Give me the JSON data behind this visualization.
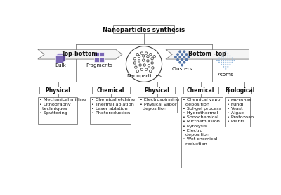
{
  "title": "Nanoparticles synthesis",
  "top_bottom_label": "Top-bottom",
  "bottom_top_label": "Bottom -top",
  "center_label": "Nanoparticles",
  "bg_color": "#ffffff",
  "box_edge": "#777777",
  "banner_fill": "#f5f5f5",
  "banner_edge": "#777777",
  "purple_color": "#7B68B5",
  "purple_light": "#9B8BD0",
  "purple_dark": "#5B4895",
  "blue_dot_color": "#5577AA",
  "atom_dot_color": "#99BBDD",
  "line_color": "#777777",
  "physical_tb_items": [
    "• Mechanical milling",
    "• Lithography\n  techniques",
    "• Sputtering"
  ],
  "chemical_tb_items": [
    "• Chemical etching",
    "• Thermal ablation",
    "• Laser ablation",
    "• Photoreduction"
  ],
  "physical_bt_items": [
    "• Electrospinning",
    "• Physical vapor\n  deposition"
  ],
  "chemical_bt_items": [
    "• Chemical vapor\n  deposition",
    "• Sol-gel process",
    "• Hydrothermal",
    "• Sonochemical",
    "• Microemulsion",
    "• Pyrolysis",
    "• Electro\n  deposition",
    "• Wet chemical\n  reduction"
  ],
  "biological_bt_items": [
    "• Microbes",
    "• Fungi",
    "• Yeast",
    "• Algae",
    "• Protozoan",
    "• Plants"
  ]
}
